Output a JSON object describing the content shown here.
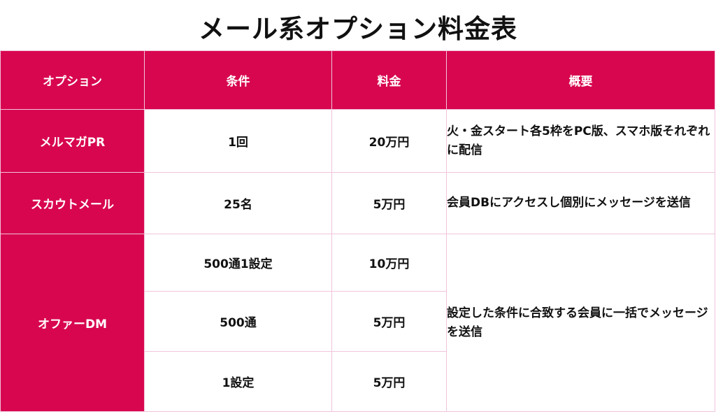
{
  "title": "メール系オプション料金表",
  "headers": [
    "オプション",
    "条件",
    "料金",
    "概要"
  ],
  "rows": [
    {
      "option": "メルマガPR",
      "condition": "1回",
      "price": "20万円",
      "summary": "火・金スタート各5枠をPC版、スマホ版それぞれに配信"
    },
    {
      "option": "スカウトメール",
      "condition": "25名",
      "price": "5万円",
      "summary": "会員DBにアクセスし個別にメッセージを送信"
    },
    {
      "option": "オファーDM",
      "summary": "設定した条件に合致する会員に一括でメッセージを送信",
      "sub": [
        {
          "condition": "500通1設定",
          "price": "10万円"
        },
        {
          "condition": "500通",
          "price": "5万円"
        },
        {
          "condition": "1設定",
          "price": "5万円"
        }
      ]
    }
  ],
  "colors": {
    "accent": "#d8064f",
    "grid": "#f0c4dd"
  }
}
